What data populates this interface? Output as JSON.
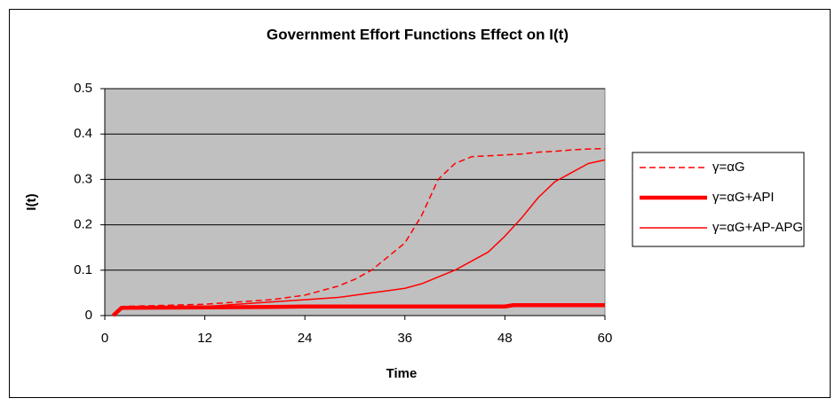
{
  "chart_data": {
    "type": "line",
    "title": "Government Effort Functions Effect on I(t)",
    "x_label": "Time",
    "y_label": "I(t)",
    "x": [
      1,
      2,
      12,
      20,
      24,
      28,
      30,
      32,
      34,
      36,
      38,
      40,
      42,
      44,
      46,
      48,
      49,
      50,
      52,
      54,
      56,
      58,
      60
    ],
    "series": [
      {
        "name": "γ=αG",
        "color": "#ff0000",
        "line_style": "dashed",
        "line_width": 1.5,
        "values": [
          0,
          0.02,
          0.025,
          0.035,
          0.045,
          0.065,
          0.08,
          0.1,
          0.13,
          0.16,
          0.22,
          0.3,
          0.335,
          0.35,
          0.352,
          0.354,
          0.355,
          0.356,
          0.36,
          0.362,
          0.365,
          0.367,
          0.368
        ]
      },
      {
        "name": "γ=αG+API",
        "color": "#ff0000",
        "line_style": "solid",
        "line_width": 4.5,
        "values": [
          0,
          0.017,
          0.018,
          0.019,
          0.02,
          0.02,
          0.02,
          0.02,
          0.02,
          0.02,
          0.02,
          0.02,
          0.02,
          0.02,
          0.02,
          0.02,
          0.023,
          0.023,
          0.023,
          0.023,
          0.023,
          0.023,
          0.023
        ]
      },
      {
        "name": "γ=αG+AP-APG",
        "color": "#ff0000",
        "line_style": "solid",
        "line_width": 1.5,
        "values": [
          0,
          0.015,
          0.02,
          0.03,
          0.035,
          0.04,
          0.045,
          0.05,
          0.055,
          0.06,
          0.07,
          0.085,
          0.1,
          0.12,
          0.14,
          0.175,
          0.195,
          0.215,
          0.26,
          0.295,
          0.315,
          0.335,
          0.343
        ]
      }
    ],
    "xlim": [
      0,
      60
    ],
    "xticks": [
      0,
      12,
      24,
      36,
      48,
      60
    ],
    "ylim": [
      0,
      0.5
    ],
    "yticks": [
      0,
      0.1,
      0.2,
      0.3,
      0.4,
      0.5
    ],
    "grid": true,
    "plot_background": "#c0c0c0",
    "legend": "right"
  }
}
